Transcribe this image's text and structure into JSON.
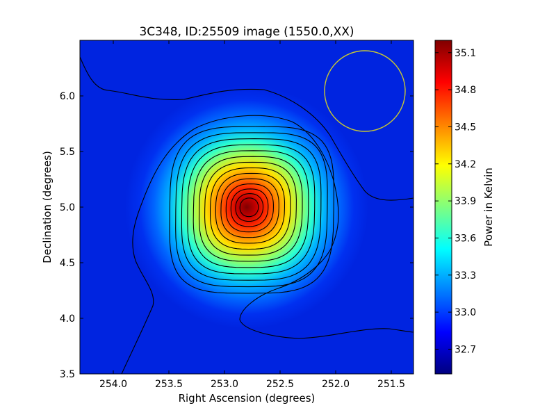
{
  "figure": {
    "title": "3C348, ID:25509 image (1550.0,XX)"
  },
  "chart_data": {
    "type": "heatmap",
    "title": "3C348, ID:25509 image (1550.0,XX)",
    "xlabel": "Right Ascension (degrees)",
    "ylabel": "Declination (degrees)",
    "xlim": [
      254.3,
      251.3
    ],
    "ylim": [
      3.5,
      6.5
    ],
    "x_reversed": true,
    "xticks": [
      "254.0",
      "253.5",
      "253.0",
      "252.5",
      "252.0",
      "251.5"
    ],
    "xtick_values": [
      254.0,
      253.5,
      253.0,
      252.5,
      252.0,
      251.5
    ],
    "yticks": [
      "3.5",
      "4.0",
      "4.5",
      "5.0",
      "5.5",
      "6.0"
    ],
    "ytick_values": [
      3.5,
      4.0,
      4.5,
      5.0,
      5.5,
      6.0
    ],
    "colormap": "jet",
    "colorbar": {
      "label": "Power in Kelvin",
      "range": [
        32.5,
        35.2
      ],
      "ticks": [
        "32.7",
        "33.0",
        "33.3",
        "33.6",
        "33.9",
        "34.2",
        "34.5",
        "34.8",
        "35.1"
      ],
      "tick_values": [
        32.7,
        33.0,
        33.3,
        33.6,
        33.9,
        34.2,
        34.5,
        34.8,
        35.1
      ]
    },
    "source": {
      "ra": 252.78,
      "dec": 5.0,
      "peak_kelvin": 35.15,
      "background_kelvin": 32.7
    },
    "beam_circle": {
      "ra": 251.72,
      "dec": 6.05,
      "radius_deg": 0.37,
      "color": "#c8c832"
    },
    "contour_line_color": "#000000",
    "contour_count": 14
  }
}
